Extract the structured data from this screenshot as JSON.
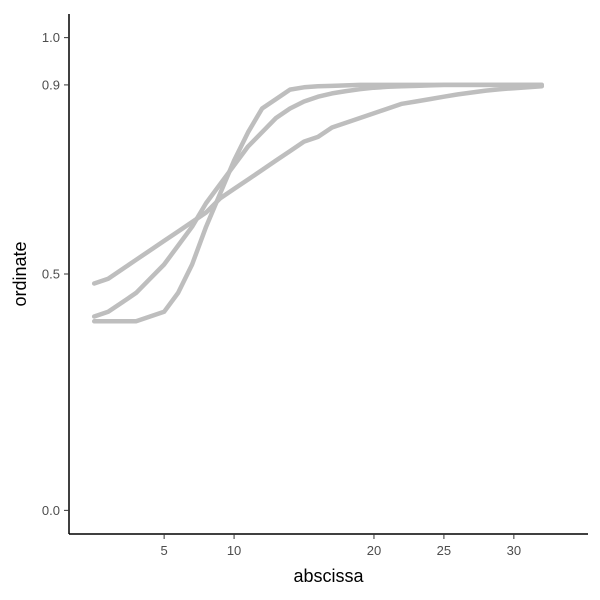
{
  "chart_data": {
    "type": "line",
    "xlabel": "abscissa",
    "ylabel": "ordinate",
    "xlim": [
      -1.8,
      35.3
    ],
    "ylim": [
      -0.05,
      1.05
    ],
    "x_ticks": [
      5,
      10,
      20,
      25,
      30
    ],
    "x_tick_labels": [
      "5",
      "10",
      "20",
      "25",
      "30"
    ],
    "y_ticks": [
      0.0,
      0.5,
      0.9,
      1.0
    ],
    "y_tick_labels": [
      "0.0",
      "0.5",
      "0.9",
      "1.0"
    ],
    "grid": false,
    "legend": "none",
    "line_color": "#bebebe",
    "series": [
      {
        "x": [
          0,
          1,
          2,
          3,
          4,
          5,
          6,
          7,
          8,
          9,
          10,
          11,
          12,
          13,
          14,
          15,
          16,
          17,
          18,
          19,
          20,
          21,
          22,
          23,
          24,
          25,
          26,
          27,
          28,
          29,
          30,
          31,
          32
        ],
        "y": [
          0.4,
          0.4,
          0.4,
          0.4,
          0.41,
          0.42,
          0.46,
          0.52,
          0.6,
          0.67,
          0.74,
          0.8,
          0.85,
          0.87,
          0.89,
          0.895,
          0.897,
          0.898,
          0.899,
          0.9,
          0.9,
          0.9,
          0.9,
          0.9,
          0.9,
          0.9,
          0.9,
          0.9,
          0.9,
          0.9,
          0.9,
          0.9,
          0.9
        ]
      },
      {
        "x": [
          0,
          1,
          2,
          3,
          4,
          5,
          6,
          7,
          8,
          9,
          10,
          11,
          12,
          13,
          14,
          15,
          16,
          17,
          18,
          19,
          20,
          21,
          22,
          23,
          24,
          25,
          26,
          27,
          28,
          29,
          30,
          31,
          32
        ],
        "y": [
          0.41,
          0.42,
          0.44,
          0.46,
          0.49,
          0.52,
          0.56,
          0.6,
          0.65,
          0.69,
          0.73,
          0.77,
          0.8,
          0.83,
          0.85,
          0.865,
          0.875,
          0.882,
          0.887,
          0.891,
          0.894,
          0.896,
          0.897,
          0.898,
          0.899,
          0.9,
          0.9,
          0.9,
          0.9,
          0.9,
          0.9,
          0.9,
          0.9
        ]
      },
      {
        "x": [
          0,
          1,
          2,
          3,
          4,
          5,
          6,
          7,
          8,
          9,
          10,
          11,
          12,
          13,
          14,
          15,
          16,
          17,
          18,
          19,
          20,
          21,
          22,
          23,
          24,
          25,
          26,
          27,
          28,
          29,
          30,
          31,
          32
        ],
        "y": [
          0.48,
          0.49,
          0.51,
          0.53,
          0.55,
          0.57,
          0.59,
          0.61,
          0.63,
          0.66,
          0.68,
          0.7,
          0.72,
          0.74,
          0.76,
          0.78,
          0.79,
          0.81,
          0.82,
          0.83,
          0.84,
          0.85,
          0.86,
          0.865,
          0.87,
          0.875,
          0.88,
          0.884,
          0.888,
          0.891,
          0.893,
          0.895,
          0.897
        ]
      }
    ]
  }
}
